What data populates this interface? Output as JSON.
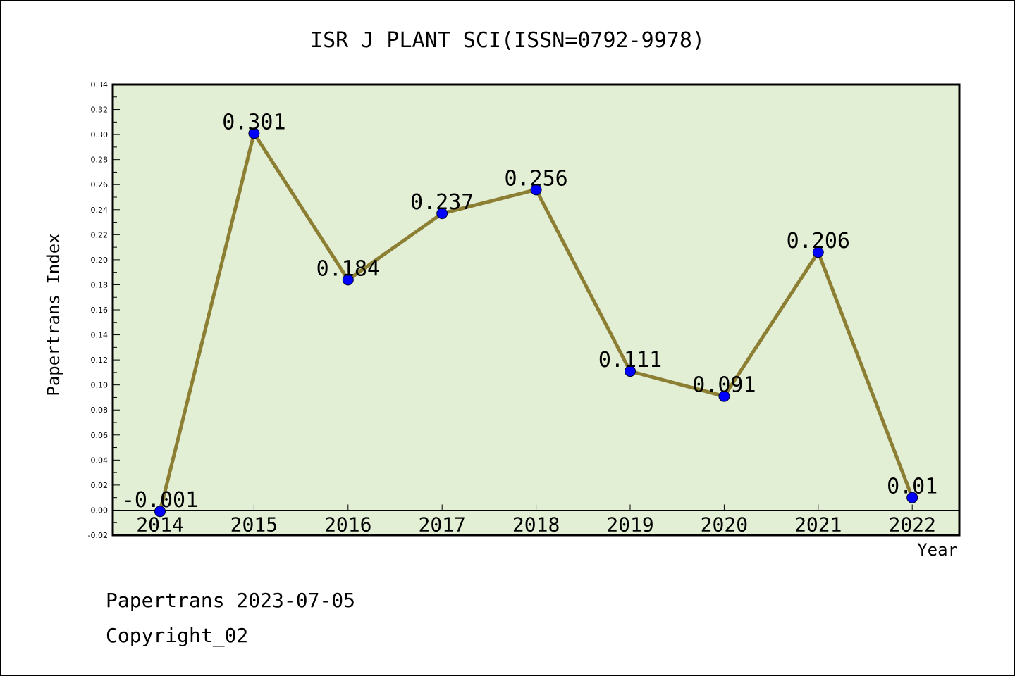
{
  "chart_data": {
    "type": "line",
    "title": "ISR J PLANT SCI(ISSN=0792-9978)",
    "xlabel": "Year",
    "ylabel": "Papertrans Index",
    "categories": [
      "2014",
      "2015",
      "2016",
      "2017",
      "2018",
      "2019",
      "2020",
      "2021",
      "2022"
    ],
    "series": [
      {
        "values": [
          -0.001,
          0.301,
          0.184,
          0.237,
          0.256,
          0.111,
          0.091,
          0.206,
          0.01
        ],
        "labels": [
          "-0.001",
          "0.301",
          "0.184",
          "0.237",
          "0.256",
          "0.111",
          "0.091",
          "0.206",
          "0.01"
        ]
      }
    ],
    "ylim": [
      -0.02,
      0.34
    ],
    "yticks": [
      "-0.02",
      "0.00",
      "0.02",
      "0.04",
      "0.06",
      "0.08",
      "0.10",
      "0.12",
      "0.14",
      "0.16",
      "0.18",
      "0.20",
      "0.22",
      "0.24",
      "0.26",
      "0.28",
      "0.30",
      "0.32",
      "0.34"
    ],
    "grid": false,
    "colors": {
      "plot_bg": "#e2efd5",
      "line": "#8c7f34",
      "marker": "#0000ff"
    }
  },
  "footer": {
    "date_line": "Papertrans 2023-07-05",
    "copyright": "Copyright_02"
  }
}
